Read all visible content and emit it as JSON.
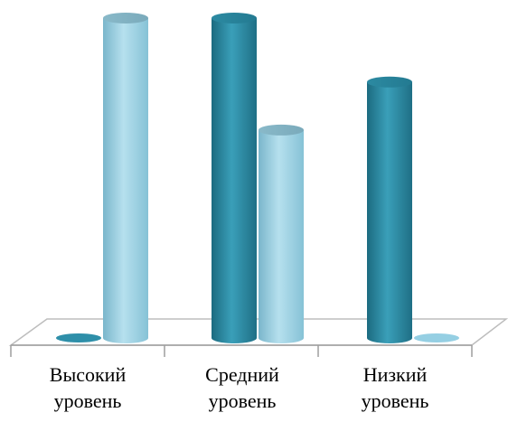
{
  "chart_data": {
    "type": "bar",
    "style": "3d-cylinder",
    "categories": [
      [
        "Высокий",
        "уровень"
      ],
      [
        "Средний",
        "уровень"
      ],
      [
        "Низкий",
        "уровень"
      ]
    ],
    "series": [
      {
        "values": [
          0,
          100,
          80
        ],
        "color": "#2e8fa9"
      },
      {
        "values": [
          100,
          65,
          0
        ],
        "color": "#95cfe3"
      }
    ],
    "ylim": [
      0,
      100
    ],
    "grid": false,
    "legend": false,
    "xlabel": "",
    "ylabel": ""
  }
}
